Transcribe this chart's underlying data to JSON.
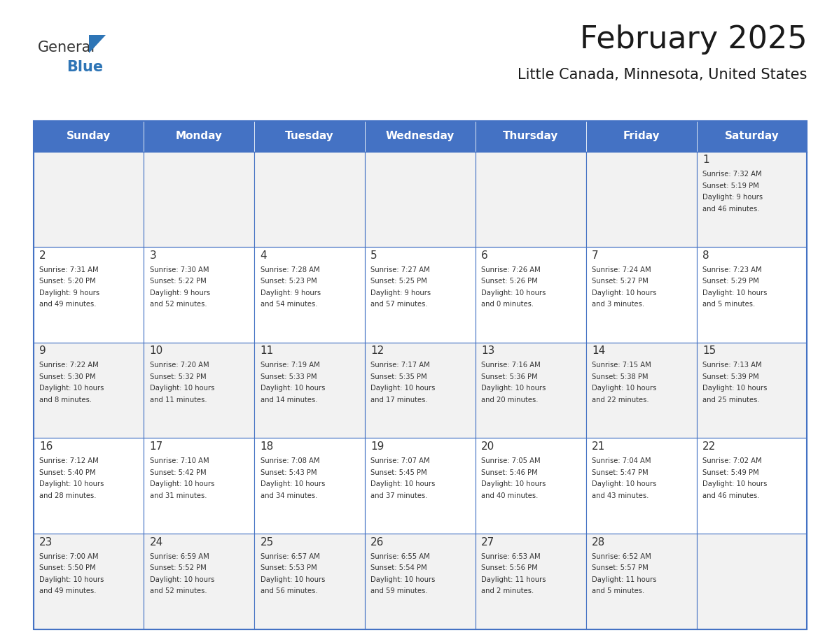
{
  "title": "February 2025",
  "subtitle": "Little Canada, Minnesota, United States",
  "header_color": "#4472c4",
  "header_text_color": "#ffffff",
  "cell_bg_even": "#f2f2f2",
  "cell_bg_odd": "#ffffff",
  "border_color": "#4472c4",
  "text_color": "#333333",
  "days_of_week": [
    "Sunday",
    "Monday",
    "Tuesday",
    "Wednesday",
    "Thursday",
    "Friday",
    "Saturday"
  ],
  "logo_color1": "#333333",
  "logo_color2": "#2e75b6",
  "logo_triangle_color": "#2e75b6",
  "calendar_data": [
    [
      null,
      null,
      null,
      null,
      null,
      null,
      {
        "day": 1,
        "sunrise": "7:32 AM",
        "sunset": "5:19 PM",
        "daylight": "9 hours and 46 minutes."
      }
    ],
    [
      {
        "day": 2,
        "sunrise": "7:31 AM",
        "sunset": "5:20 PM",
        "daylight": "9 hours and 49 minutes."
      },
      {
        "day": 3,
        "sunrise": "7:30 AM",
        "sunset": "5:22 PM",
        "daylight": "9 hours and 52 minutes."
      },
      {
        "day": 4,
        "sunrise": "7:28 AM",
        "sunset": "5:23 PM",
        "daylight": "9 hours and 54 minutes."
      },
      {
        "day": 5,
        "sunrise": "7:27 AM",
        "sunset": "5:25 PM",
        "daylight": "9 hours and 57 minutes."
      },
      {
        "day": 6,
        "sunrise": "7:26 AM",
        "sunset": "5:26 PM",
        "daylight": "10 hours and 0 minutes."
      },
      {
        "day": 7,
        "sunrise": "7:24 AM",
        "sunset": "5:27 PM",
        "daylight": "10 hours and 3 minutes."
      },
      {
        "day": 8,
        "sunrise": "7:23 AM",
        "sunset": "5:29 PM",
        "daylight": "10 hours and 5 minutes."
      }
    ],
    [
      {
        "day": 9,
        "sunrise": "7:22 AM",
        "sunset": "5:30 PM",
        "daylight": "10 hours and 8 minutes."
      },
      {
        "day": 10,
        "sunrise": "7:20 AM",
        "sunset": "5:32 PM",
        "daylight": "10 hours and 11 minutes."
      },
      {
        "day": 11,
        "sunrise": "7:19 AM",
        "sunset": "5:33 PM",
        "daylight": "10 hours and 14 minutes."
      },
      {
        "day": 12,
        "sunrise": "7:17 AM",
        "sunset": "5:35 PM",
        "daylight": "10 hours and 17 minutes."
      },
      {
        "day": 13,
        "sunrise": "7:16 AM",
        "sunset": "5:36 PM",
        "daylight": "10 hours and 20 minutes."
      },
      {
        "day": 14,
        "sunrise": "7:15 AM",
        "sunset": "5:38 PM",
        "daylight": "10 hours and 22 minutes."
      },
      {
        "day": 15,
        "sunrise": "7:13 AM",
        "sunset": "5:39 PM",
        "daylight": "10 hours and 25 minutes."
      }
    ],
    [
      {
        "day": 16,
        "sunrise": "7:12 AM",
        "sunset": "5:40 PM",
        "daylight": "10 hours and 28 minutes."
      },
      {
        "day": 17,
        "sunrise": "7:10 AM",
        "sunset": "5:42 PM",
        "daylight": "10 hours and 31 minutes."
      },
      {
        "day": 18,
        "sunrise": "7:08 AM",
        "sunset": "5:43 PM",
        "daylight": "10 hours and 34 minutes."
      },
      {
        "day": 19,
        "sunrise": "7:07 AM",
        "sunset": "5:45 PM",
        "daylight": "10 hours and 37 minutes."
      },
      {
        "day": 20,
        "sunrise": "7:05 AM",
        "sunset": "5:46 PM",
        "daylight": "10 hours and 40 minutes."
      },
      {
        "day": 21,
        "sunrise": "7:04 AM",
        "sunset": "5:47 PM",
        "daylight": "10 hours and 43 minutes."
      },
      {
        "day": 22,
        "sunrise": "7:02 AM",
        "sunset": "5:49 PM",
        "daylight": "10 hours and 46 minutes."
      }
    ],
    [
      {
        "day": 23,
        "sunrise": "7:00 AM",
        "sunset": "5:50 PM",
        "daylight": "10 hours and 49 minutes."
      },
      {
        "day": 24,
        "sunrise": "6:59 AM",
        "sunset": "5:52 PM",
        "daylight": "10 hours and 52 minutes."
      },
      {
        "day": 25,
        "sunrise": "6:57 AM",
        "sunset": "5:53 PM",
        "daylight": "10 hours and 56 minutes."
      },
      {
        "day": 26,
        "sunrise": "6:55 AM",
        "sunset": "5:54 PM",
        "daylight": "10 hours and 59 minutes."
      },
      {
        "day": 27,
        "sunrise": "6:53 AM",
        "sunset": "5:56 PM",
        "daylight": "11 hours and 2 minutes."
      },
      {
        "day": 28,
        "sunrise": "6:52 AM",
        "sunset": "5:57 PM",
        "daylight": "11 hours and 5 minutes."
      },
      null
    ]
  ]
}
